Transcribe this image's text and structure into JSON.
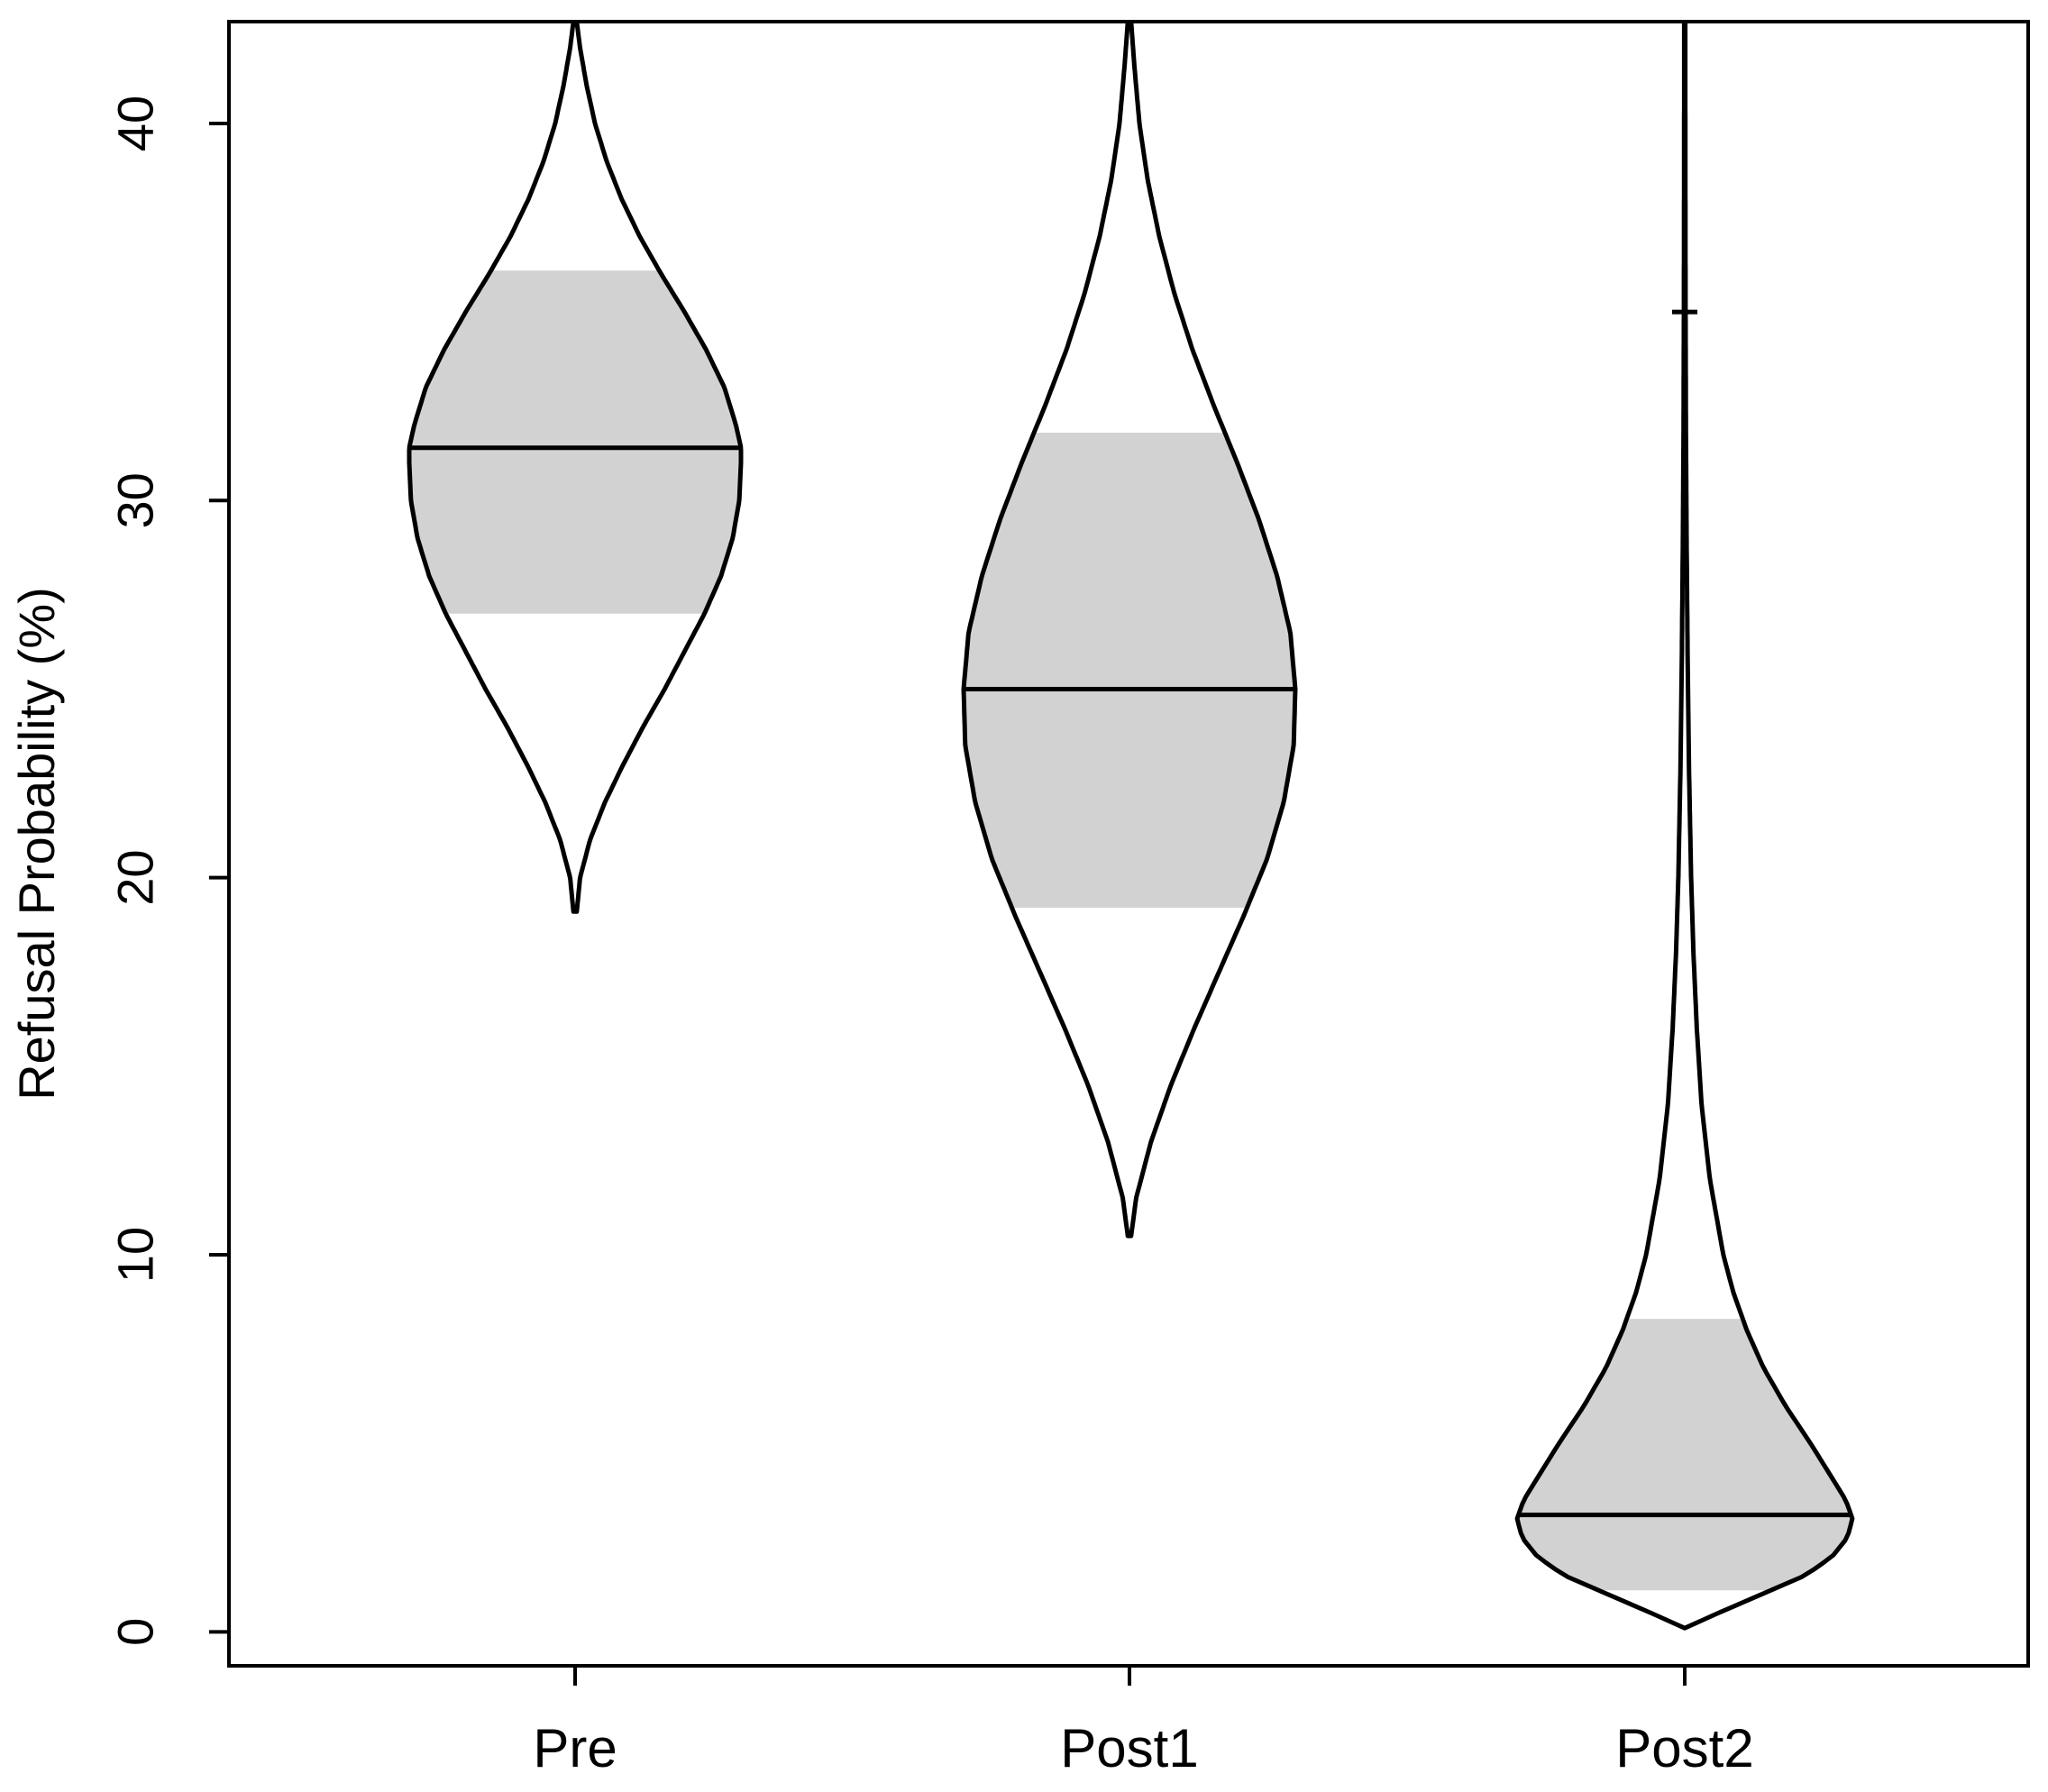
{
  "chart_data": {
    "type": "violin",
    "title": "",
    "xlabel": "",
    "ylabel": "Refusal Probability (%)",
    "ylim": [
      -0.9,
      42.7
    ],
    "yticks": [
      0,
      10,
      20,
      30,
      40
    ],
    "categories": [
      "Pre",
      "Post1",
      "Post2"
    ],
    "series": [
      {
        "name": "Pre",
        "median": 31.4,
        "ci_low": 27.0,
        "ci_high": 36.1,
        "min": 19.1,
        "max": 42.7,
        "density_y": [
          19.1,
          20.0,
          21.0,
          22.0,
          23.0,
          24.0,
          25.0,
          26.0,
          27.0,
          28.0,
          29.0,
          30.0,
          31.0,
          31.4,
          32.0,
          33.0,
          34.0,
          35.0,
          36.0,
          37.0,
          38.0,
          39.0,
          40.0,
          41.0,
          42.0,
          42.7
        ],
        "density_w": [
          0.01,
          0.03,
          0.09,
          0.18,
          0.29,
          0.41,
          0.54,
          0.66,
          0.78,
          0.88,
          0.95,
          0.99,
          1.0,
          1.0,
          0.97,
          0.9,
          0.79,
          0.66,
          0.52,
          0.39,
          0.28,
          0.19,
          0.12,
          0.07,
          0.03,
          0.01
        ]
      },
      {
        "name": "Post1",
        "median": 25.0,
        "ci_low": 19.2,
        "ci_high": 31.8,
        "min": 10.5,
        "max": 42.7,
        "density_y": [
          10.5,
          11.5,
          13.0,
          14.5,
          16.0,
          17.5,
          19.0,
          20.5,
          22.0,
          23.5,
          25.0,
          26.5,
          28.0,
          29.5,
          31.0,
          32.5,
          34.0,
          35.5,
          37.0,
          38.5,
          40.0,
          41.5,
          42.7
        ],
        "density_w": [
          0.01,
          0.04,
          0.13,
          0.25,
          0.39,
          0.54,
          0.69,
          0.83,
          0.93,
          0.99,
          1.0,
          0.97,
          0.89,
          0.78,
          0.65,
          0.51,
          0.38,
          0.27,
          0.18,
          0.11,
          0.06,
          0.03,
          0.01
        ]
      },
      {
        "name": "Post2",
        "median": 3.1,
        "ci_low": 1.1,
        "ci_high": 8.3,
        "min": 0.1,
        "max": 42.7,
        "extra_tick": 35.0,
        "density_y": [
          0.1,
          0.5,
          1.0,
          1.5,
          2.0,
          2.5,
          3.0,
          3.5,
          4.0,
          5.0,
          6.0,
          7.0,
          8.0,
          9.0,
          10.0,
          12.0,
          14.0,
          16.0,
          18.0,
          20.0,
          23.0,
          26.0,
          29.0,
          32.0,
          35.0,
          38.0,
          42.7
        ],
        "density_w": [
          0.0,
          0.2,
          0.46,
          0.72,
          0.88,
          0.97,
          1.0,
          0.96,
          0.89,
          0.75,
          0.6,
          0.47,
          0.37,
          0.29,
          0.23,
          0.15,
          0.1,
          0.072,
          0.052,
          0.038,
          0.025,
          0.017,
          0.011,
          0.007,
          0.005,
          0.004,
          0.003
        ]
      }
    ]
  },
  "colors": {
    "axis": "#000000",
    "violin_stroke": "#000000",
    "ci_band": "#d2d2d2",
    "background": "#ffffff"
  }
}
